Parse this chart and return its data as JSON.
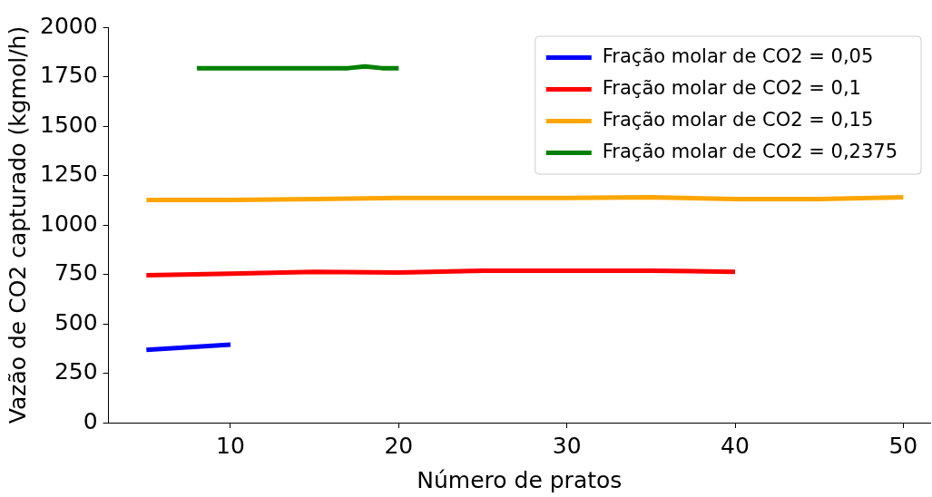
{
  "chart_data": {
    "type": "line",
    "xlabel": "Número de pratos",
    "ylabel": "Vazão de CO2 capturado (kgmol/h)",
    "xlim": [
      2.75,
      51.6
    ],
    "xticks": [
      10,
      20,
      30,
      40,
      50
    ],
    "ylim": [
      0,
      2000
    ],
    "yticks": [
      0,
      250,
      500,
      750,
      1000,
      1250,
      1500,
      1750,
      2000
    ],
    "grid": false,
    "legend": "top right",
    "marker": "none",
    "line_style": "solid",
    "series": [
      {
        "name": "Fração molar de CO2 = 0,05",
        "color": "#0000ff",
        "x": [
          5,
          10
        ],
        "values": [
          368,
          395
        ]
      },
      {
        "name": "Fração molar de CO2 = 0,1",
        "color": "#ff0000",
        "x": [
          5,
          10,
          15,
          20,
          25,
          30,
          35,
          40
        ],
        "values": [
          745,
          754,
          763,
          759,
          768,
          768,
          768,
          763
        ]
      },
      {
        "name": "Fração molar de CO2 = 0,15",
        "color": "#ffa500",
        "x": [
          5,
          10,
          15,
          20,
          25,
          30,
          35,
          40,
          45,
          50
        ],
        "values": [
          1126,
          1126,
          1131,
          1136,
          1136,
          1136,
          1140,
          1131,
          1131,
          1140
        ]
      },
      {
        "name": "Fração molar de CO2 = 0,2375",
        "color": "#008000",
        "x": [
          8,
          10,
          12,
          14,
          16,
          17,
          18,
          19,
          20
        ],
        "values": [
          1793,
          1793,
          1793,
          1793,
          1793,
          1793,
          1802,
          1793,
          1793
        ]
      }
    ]
  }
}
